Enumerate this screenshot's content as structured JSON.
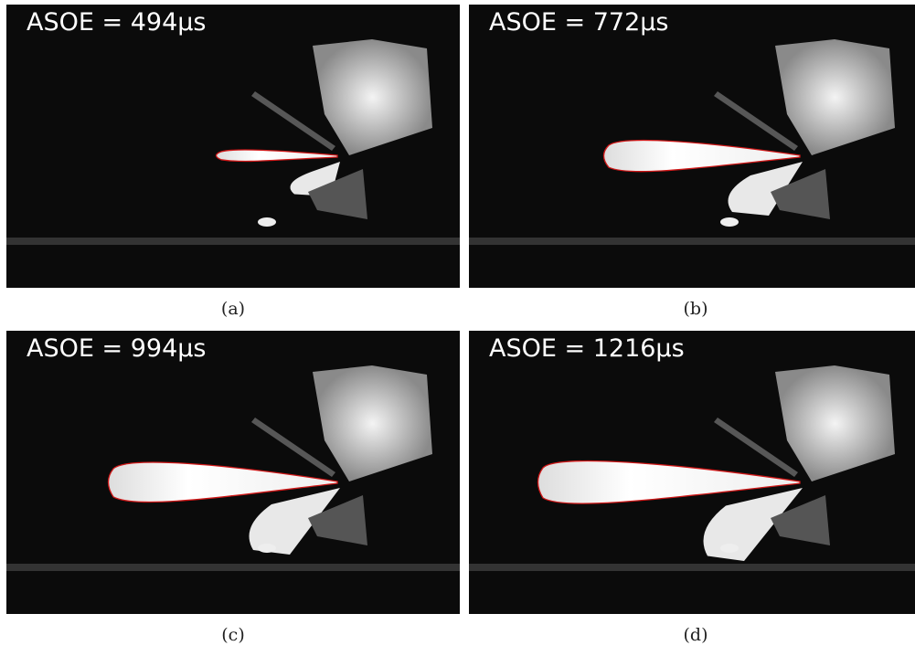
{
  "panels": [
    {
      "label": "ASOE = 494μs",
      "caption": "(a)"
    },
    {
      "label": "ASOE = 772μs",
      "caption": "(b)"
    },
    {
      "label": "ASOE = 994μs",
      "caption": "(c)"
    },
    {
      "label": "ASOE = 1216μs",
      "caption": "(d)"
    }
  ]
}
